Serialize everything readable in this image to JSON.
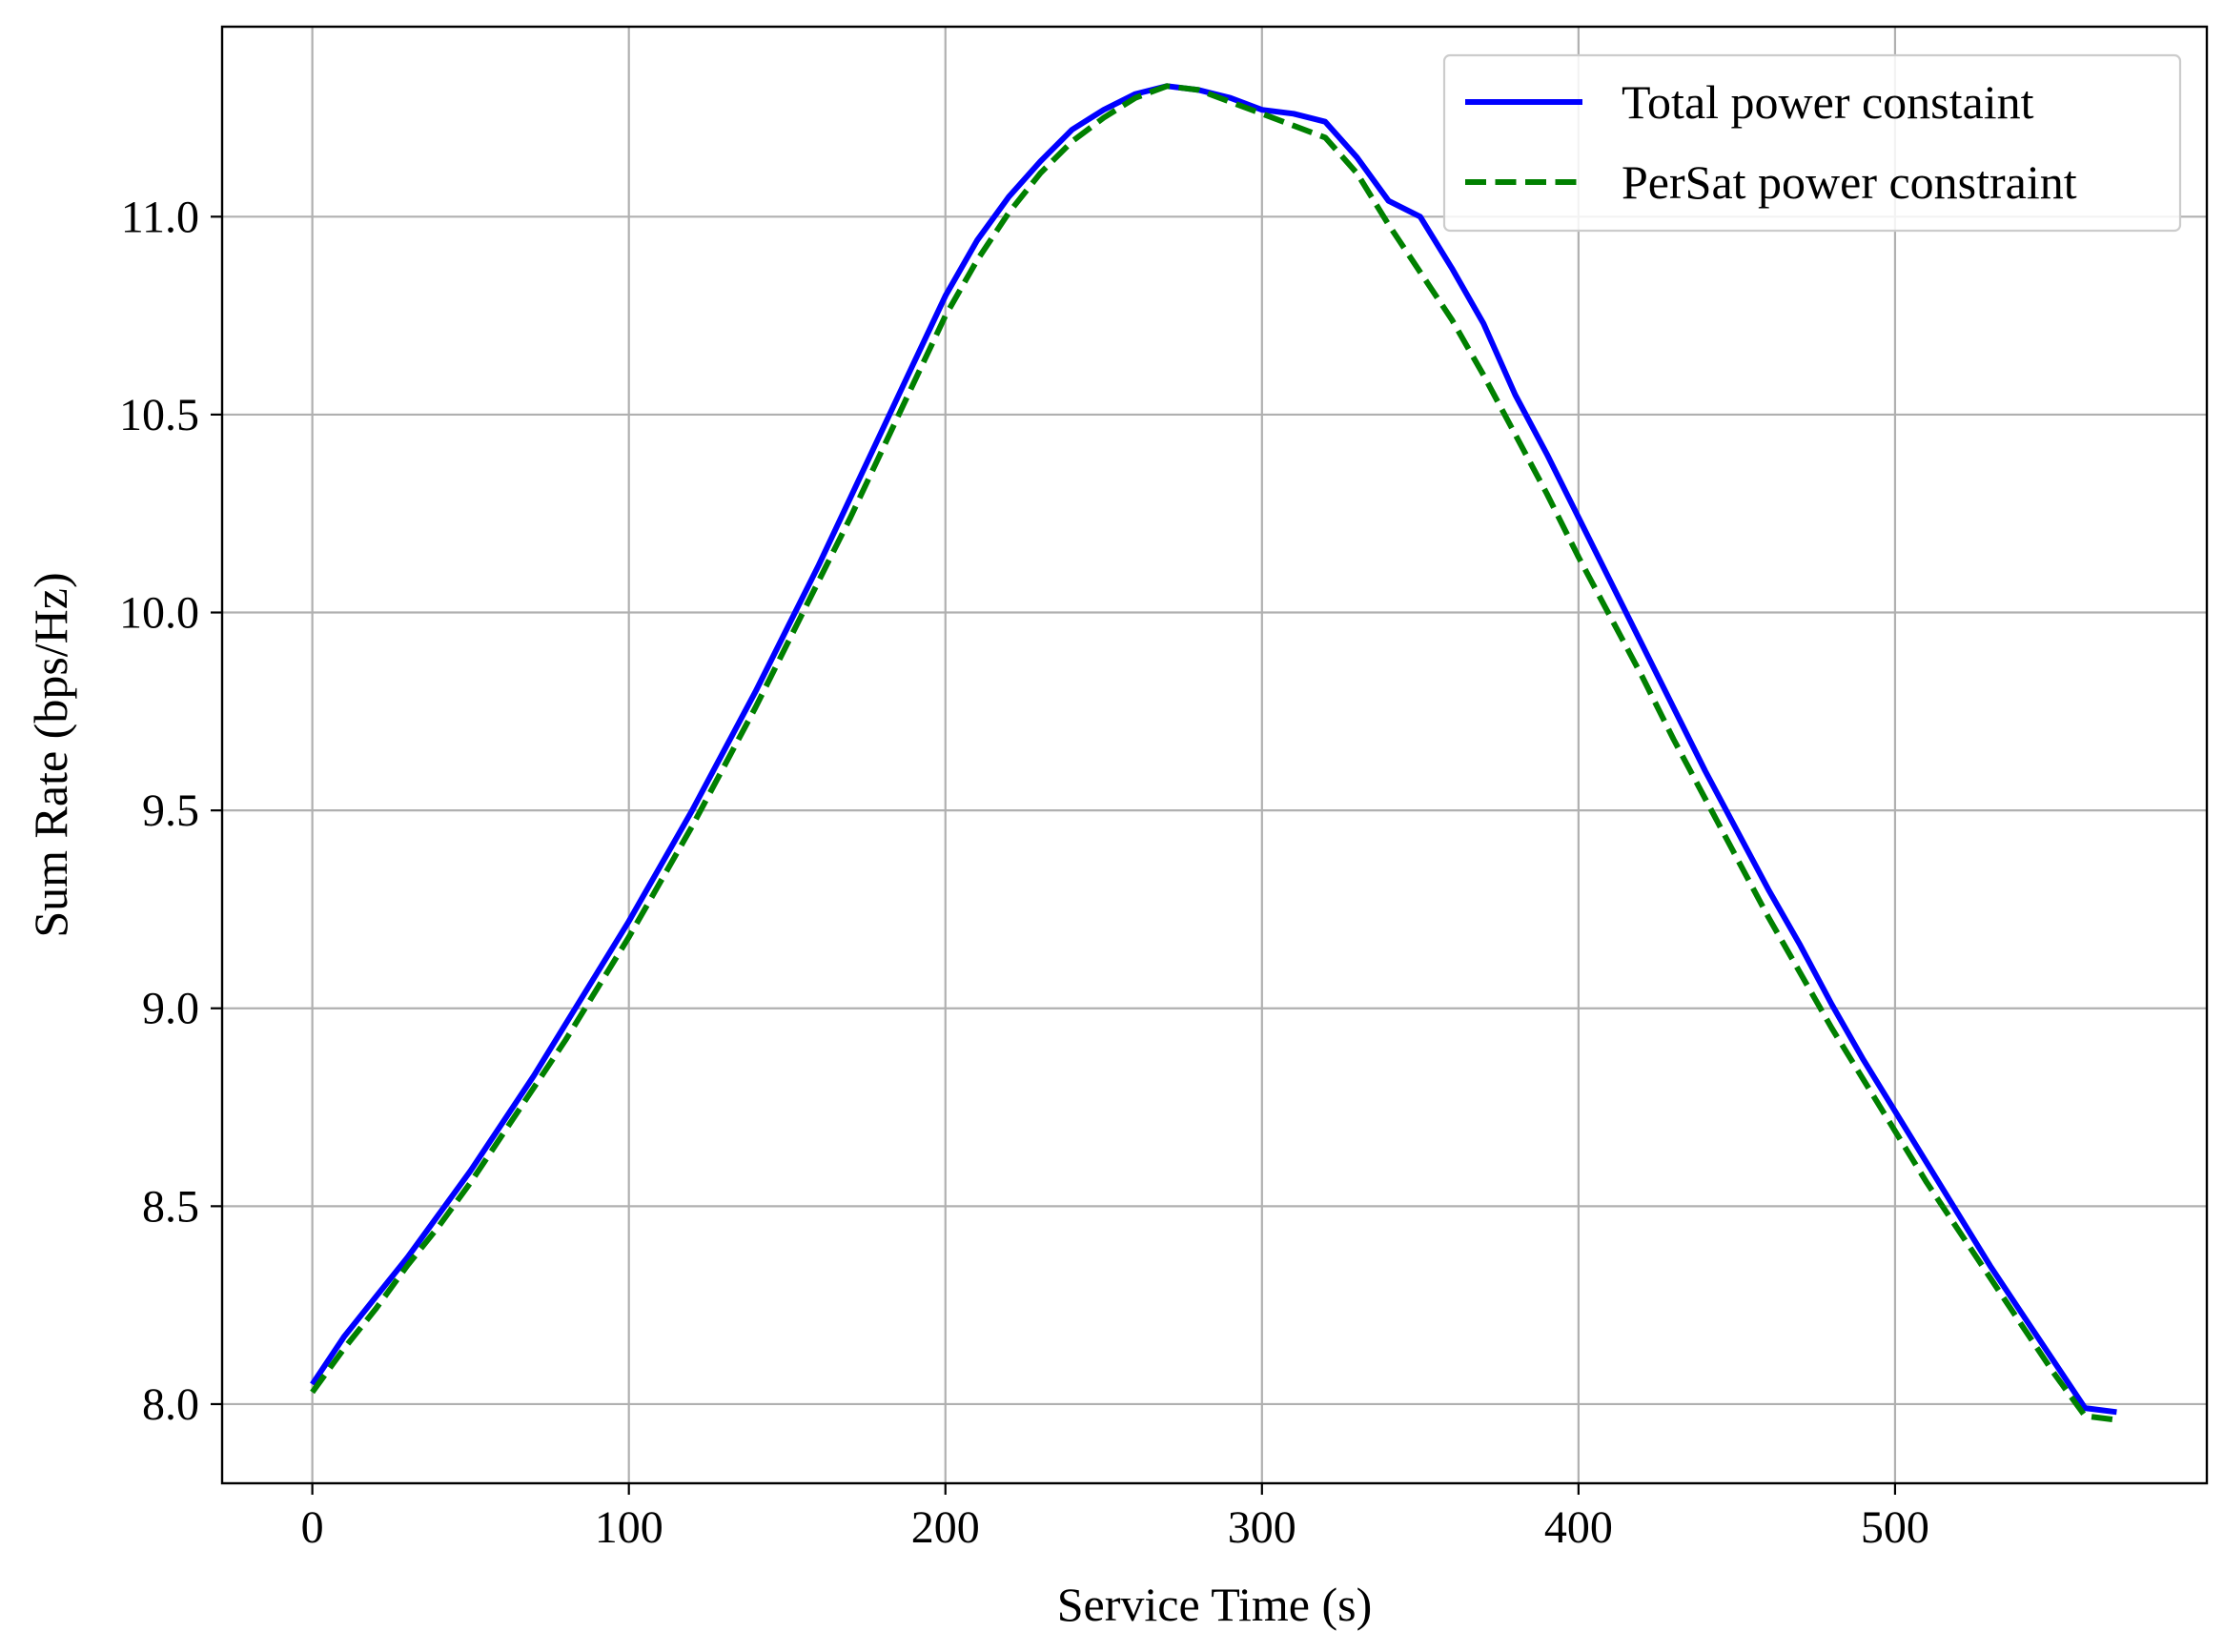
{
  "chart_data": {
    "type": "line",
    "title": "",
    "xlabel": "Service Time (s)",
    "ylabel": "Sum Rate (bps/Hz)",
    "xlim": [
      -28.5,
      598.5
    ],
    "ylim": [
      7.8,
      11.48
    ],
    "xticks": [
      0,
      100,
      200,
      300,
      400,
      500
    ],
    "xtick_labels": [
      "0",
      "100",
      "200",
      "300",
      "400",
      "500"
    ],
    "yticks": [
      8.0,
      8.5,
      9.0,
      9.5,
      10.0,
      10.5,
      11.0
    ],
    "ytick_labels": [
      "8.0",
      "8.5",
      "9.0",
      "9.5",
      "10.0",
      "10.5",
      "11.0"
    ],
    "grid": true,
    "legend_position": "upper right",
    "x": [
      0,
      10,
      20,
      30,
      40,
      50,
      60,
      70,
      80,
      90,
      100,
      110,
      120,
      130,
      140,
      150,
      160,
      170,
      180,
      190,
      200,
      210,
      220,
      230,
      240,
      250,
      260,
      270,
      280,
      290,
      300,
      310,
      320,
      330,
      340,
      350,
      360,
      370,
      380,
      390,
      400,
      410,
      420,
      430,
      440,
      450,
      460,
      470,
      480,
      490,
      500,
      510,
      520,
      530,
      540,
      550,
      560,
      570
    ],
    "series": [
      {
        "name": "Total power constaint",
        "color": "#0000ff",
        "style": "solid",
        "values": [
          8.05,
          8.17,
          8.27,
          8.37,
          8.48,
          8.59,
          8.71,
          8.83,
          8.96,
          9.09,
          9.22,
          9.36,
          9.5,
          9.65,
          9.8,
          9.96,
          10.12,
          10.29,
          10.46,
          10.63,
          10.8,
          10.94,
          11.05,
          11.14,
          11.22,
          11.27,
          11.31,
          11.33,
          11.32,
          11.3,
          11.27,
          11.26,
          11.24,
          11.15,
          11.04,
          11.0,
          10.87,
          10.73,
          10.55,
          10.4,
          10.24,
          10.08,
          9.92,
          9.76,
          9.6,
          9.45,
          9.3,
          9.16,
          9.01,
          8.87,
          8.74,
          8.61,
          8.48,
          8.35,
          8.23,
          8.11,
          7.99,
          7.98
        ]
      },
      {
        "name": "PerSat power constraint",
        "color": "#008000",
        "style": "dashed",
        "values": [
          8.03,
          8.14,
          8.24,
          8.35,
          8.45,
          8.56,
          8.68,
          8.8,
          8.92,
          9.05,
          9.18,
          9.32,
          9.46,
          9.61,
          9.76,
          9.92,
          10.08,
          10.24,
          10.41,
          10.58,
          10.75,
          10.89,
          11.01,
          11.11,
          11.19,
          11.25,
          11.3,
          11.33,
          11.32,
          11.29,
          11.26,
          11.23,
          11.2,
          11.11,
          10.98,
          10.86,
          10.74,
          10.6,
          10.45,
          10.3,
          10.14,
          9.99,
          9.84,
          9.68,
          9.53,
          9.38,
          9.23,
          9.09,
          8.95,
          8.82,
          8.69,
          8.56,
          8.44,
          8.32,
          8.2,
          8.08,
          7.97,
          7.96
        ]
      }
    ]
  }
}
